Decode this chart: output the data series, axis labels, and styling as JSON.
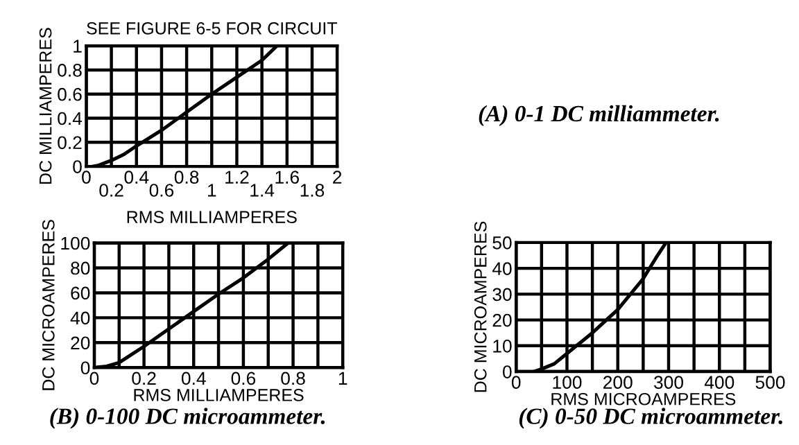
{
  "chart_data": [
    {
      "type": "line",
      "title": "SEE FIGURE 6-5 FOR CIRCUIT",
      "xlabel": "RMS MILLIAMPERES",
      "ylabel": "DC MILLIAMPERES",
      "annotations": [
        "(A) 0-1 DC milliammeter."
      ],
      "series": [
        {
          "color": "#000000",
          "x": [
            0.05,
            0.1,
            0.2,
            0.3,
            0.4,
            0.6,
            0.8,
            1.0,
            1.2,
            1.4,
            1.52
          ],
          "values": [
            0,
            0.01,
            0.05,
            0.1,
            0.17,
            0.3,
            0.45,
            0.6,
            0.74,
            0.88,
            1.0
          ]
        }
      ],
      "xlim": [
        0,
        2
      ],
      "ylim": [
        0,
        1
      ],
      "xticks": [
        0,
        {
          "value": 0.2,
          "label": null
        },
        0.4,
        {
          "value": 0.6,
          "label": null
        },
        0.8,
        {
          "value": 1,
          "label": null
        },
        1.2,
        {
          "value": 1.4,
          "label": null
        },
        1.6,
        {
          "value": 1.8,
          "label": null
        },
        2
      ],
      "x2lim": [
        0,
        2
      ],
      "x2ticks": [
        0.2,
        0.6,
        1,
        1.4,
        1.8
      ],
      "yticks": [
        0,
        0.2,
        0.4,
        0.6,
        0.8,
        1
      ],
      "grid": true,
      "legend": false,
      "marker": "none",
      "line_style": "solid"
    },
    {
      "type": "line",
      "xlabel": "RMS MILLIAMPERES",
      "ylabel": "DC MICROAMPERES",
      "annotations": [
        "(B) 0-100 DC microammeter."
      ],
      "series": [
        {
          "color": "#000000",
          "x": [
            0,
            0.05,
            0.1,
            0.2,
            0.3,
            0.4,
            0.5,
            0.6,
            0.7,
            0.78
          ],
          "values": [
            0,
            1,
            4,
            17,
            31,
            45,
            59,
            72,
            87,
            100
          ]
        }
      ],
      "xlim": [
        0,
        1
      ],
      "ylim": [
        0,
        100
      ],
      "xticks": [
        0,
        {
          "value": 0.1,
          "label": null
        },
        0.2,
        {
          "value": 0.3,
          "label": null
        },
        0.4,
        {
          "value": 0.5,
          "label": null
        },
        0.6,
        {
          "value": 0.7,
          "label": null
        },
        0.8,
        {
          "value": 0.9,
          "label": null
        },
        1
      ],
      "yticks": [
        0,
        20,
        40,
        60,
        80,
        100
      ],
      "grid": true,
      "legend": false,
      "marker": "none",
      "line_style": "solid"
    },
    {
      "type": "line",
      "xlabel": "RMS MICROAMPERES",
      "ylabel": "DC MICROAMPERES",
      "annotations": [
        "(C) 0-50 DC microammeter."
      ],
      "series": [
        {
          "color": "#000000",
          "x": [
            35,
            50,
            75,
            100,
            150,
            200,
            250,
            275,
            295
          ],
          "values": [
            0,
            1,
            3,
            7,
            15,
            24,
            36,
            44,
            50
          ]
        }
      ],
      "xlim": [
        0,
        500
      ],
      "ylim": [
        0,
        50
      ],
      "xticks": [
        0,
        {
          "value": 50,
          "label": null
        },
        100,
        {
          "value": 150,
          "label": null
        },
        200,
        {
          "value": 250,
          "label": null
        },
        300,
        {
          "value": 350,
          "label": null
        },
        400,
        {
          "value": 450,
          "label": null
        },
        500
      ],
      "yticks": [
        0,
        10,
        20,
        30,
        40,
        50
      ],
      "grid": true,
      "legend": false,
      "marker": "none",
      "line_style": "solid"
    }
  ]
}
